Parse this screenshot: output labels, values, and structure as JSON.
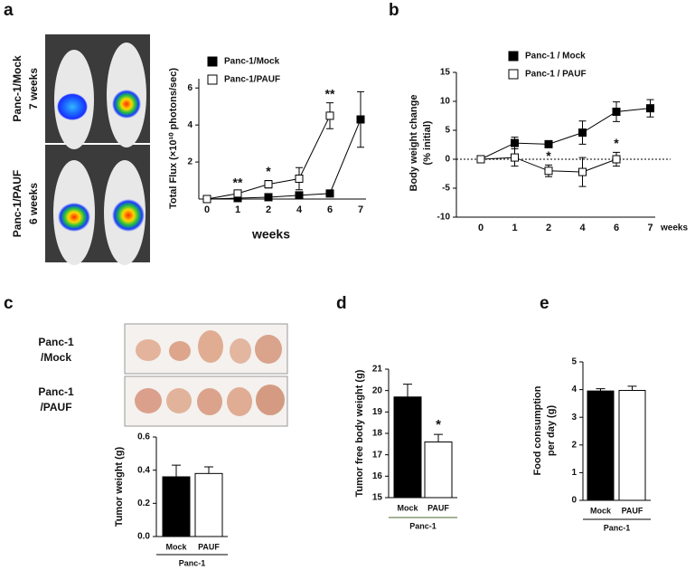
{
  "panel_labels": [
    "a",
    "b",
    "c",
    "d",
    "e"
  ],
  "images": {
    "a_labels": [
      [
        "Panc-1/Mock",
        "7 weeks"
      ],
      [
        "Panc-1/PAUF",
        "6 weeks"
      ]
    ],
    "c_labels": [
      [
        "Panc-1",
        "/Mock"
      ],
      [
        "Panc-1",
        "/PAUF"
      ]
    ]
  },
  "chart_data": [
    {
      "type": "line",
      "ylabel": [
        "Total Flux (×10¹⁰ photons/sec)"
      ],
      "xlabel": "weeks",
      "categories": [
        "0",
        "1",
        "2",
        "4",
        "6",
        "7"
      ],
      "series": [
        {
          "name": "Panc-1/Mock",
          "color": "#000000",
          "values": [
            0,
            0.05,
            0.1,
            0.2,
            0.3,
            4.3
          ],
          "errors": [
            0,
            0.03,
            0.05,
            0.1,
            0.1,
            1.5
          ]
        },
        {
          "name": "Panc-1/PAUF",
          "color": "#ffffff",
          "values": [
            0,
            0.3,
            0.8,
            1.1,
            4.5,
            null
          ],
          "errors": [
            0,
            0.1,
            0.2,
            0.6,
            0.7,
            null
          ]
        }
      ],
      "annotations": [
        null,
        "**",
        "*",
        null,
        "**",
        null
      ],
      "ylim": [
        0,
        6.5
      ],
      "yticks": [
        2,
        4,
        6
      ]
    },
    {
      "type": "line",
      "ylabel": [
        "Body weight change",
        "(% initial)"
      ],
      "xlabel": "weeks",
      "categories": [
        "0",
        "1",
        "2",
        "4",
        "6",
        "7"
      ],
      "series": [
        {
          "name": "Panc-1 / Mock",
          "color": "#000000",
          "values": [
            0,
            2.8,
            2.6,
            4.6,
            8.2,
            8.8
          ],
          "errors": [
            0,
            1,
            0.5,
            2,
            1.7,
            1.5
          ]
        },
        {
          "name": "Panc-1 / PAUF",
          "color": "#ffffff",
          "values": [
            0,
            0.3,
            -2,
            -2.2,
            0,
            null
          ],
          "errors": [
            0,
            1.5,
            1,
            2.5,
            1.2,
            null
          ]
        }
      ],
      "annotations": [
        null,
        null,
        "*",
        null,
        "*",
        null
      ],
      "reference_line": 0,
      "ylim": [
        -10,
        15
      ],
      "yticks": [
        -10,
        -5,
        0,
        5,
        10,
        15
      ]
    },
    {
      "type": "bar",
      "ylabel": [
        "Tumor weight (g)"
      ],
      "group_label": "Panc-1",
      "categories": [
        "Mock",
        "PAUF"
      ],
      "colors": [
        "#000000",
        "#ffffff"
      ],
      "values": [
        0.36,
        0.38
      ],
      "errors": [
        0.07,
        0.04
      ],
      "annotations": [
        null,
        null
      ],
      "ylim": [
        0,
        0.6
      ],
      "yticks": [
        {
          "value": 0,
          "label": "0.0"
        },
        0.2,
        0.4,
        0.6
      ]
    },
    {
      "type": "bar",
      "ylabel": [
        "Tumor free body weight (g)"
      ],
      "group_label": "Panc-1",
      "categories": [
        "Mock",
        "PAUF"
      ],
      "colors": [
        "#000000",
        "#ffffff"
      ],
      "values": [
        19.7,
        17.6
      ],
      "errors": [
        0.6,
        0.35
      ],
      "annotations": [
        null,
        "*"
      ],
      "ylim": [
        15,
        21
      ],
      "yticks": [
        15,
        16,
        17,
        18,
        19,
        20,
        21
      ]
    },
    {
      "type": "bar",
      "ylabel": [
        "Food consumption",
        "per day (g)"
      ],
      "group_label": "Panc-1",
      "categories": [
        "Mock",
        "PAUF"
      ],
      "colors": [
        "#000000",
        "#ffffff"
      ],
      "values": [
        3.95,
        3.97
      ],
      "errors": [
        0.08,
        0.15
      ],
      "annotations": [
        null,
        null
      ],
      "ylim": [
        0,
        5
      ],
      "yticks": [
        0,
        1,
        2,
        3,
        4,
        5
      ]
    }
  ]
}
